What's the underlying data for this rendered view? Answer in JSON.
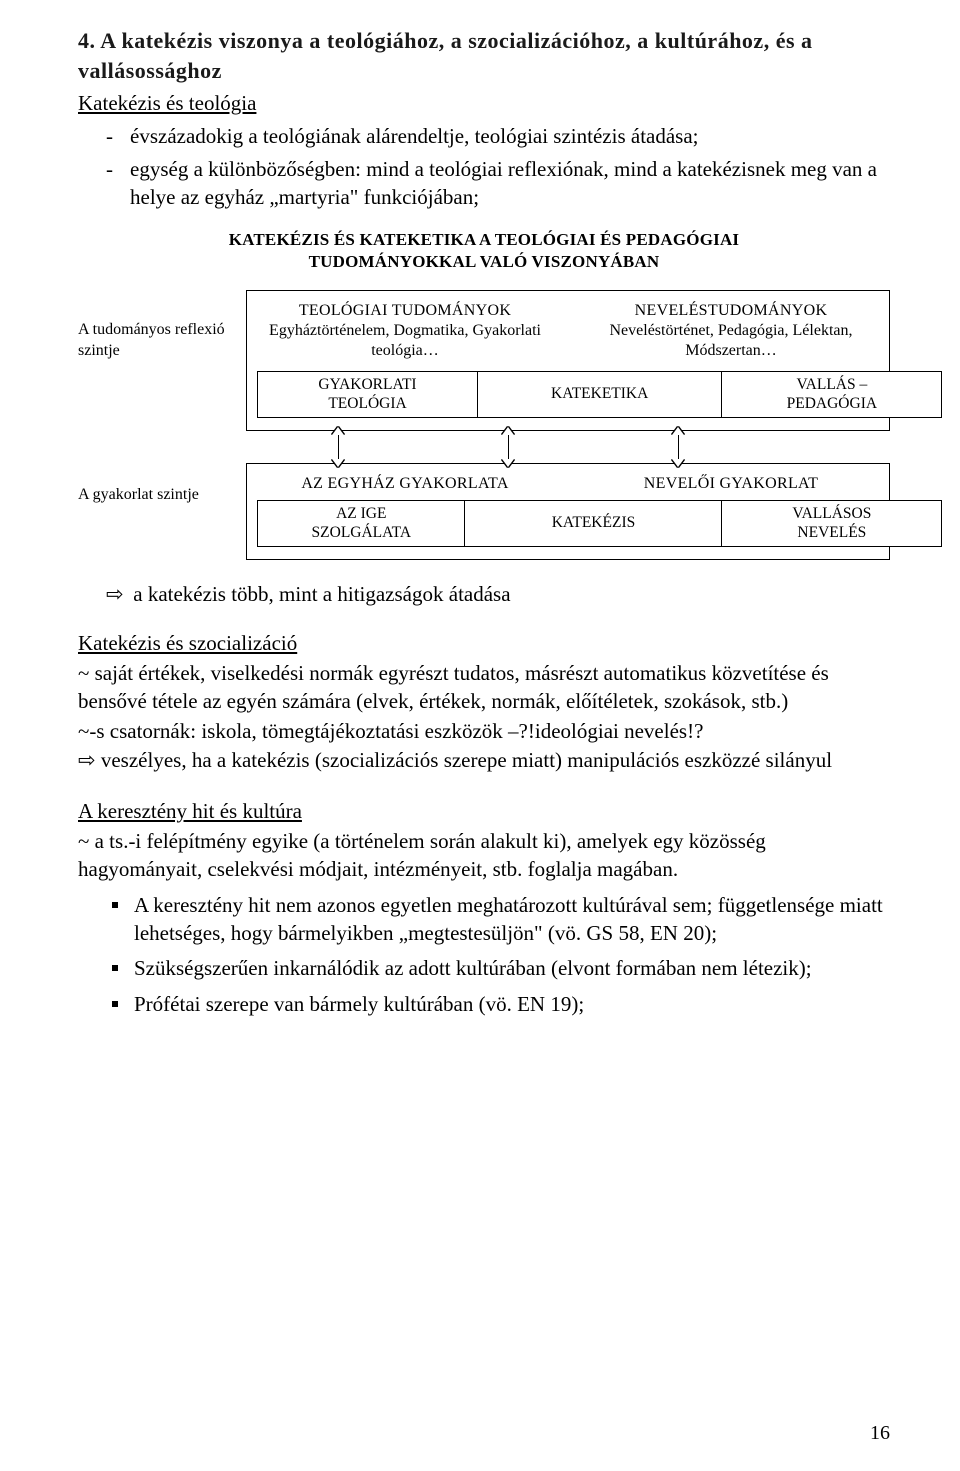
{
  "heading": "4.  A katekézis viszonya a teológiához, a szocializációhoz, a kultúrához, és a vallásossághoz",
  "sec1_title": "Katekézis és teológia",
  "sec1_items": [
    "évszázadokig a teológiának alárendeltje, teológiai szintézis átadása;",
    "egység a különbözőségben: mind a teológiai reflexiónak, mind a katekézisnek meg van a helye az egyház „martyria\" funkciójában;"
  ],
  "diagram": {
    "title_l1": "KATEKÉZIS ÉS KATEKETIKA A TEOLÓGIAI ÉS PEDAGÓGIAI",
    "title_l2": "TUDOMÁNYOKKAL VALÓ VISZONYÁBAN",
    "left_top": "A tudományos reflexió szintje",
    "left_bottom": "A gyakorlat szintje",
    "top_box": {
      "col_a_t": "TEOLÓGIAI TUDOMÁNYOK",
      "col_a_s": "Egyháztörténelem, Dogmatika, Gyakorlati teológia…",
      "col_b_t": "NEVELÉSTUDOMÁNYOK",
      "col_b_s": "Neveléstörténet, Pedagógia, Lélektan, Módszertan…",
      "sub_a_l1": "GYAKORLATI",
      "sub_a_l2": "TEOLÓGIA",
      "sub_b": "KATEKETIKA",
      "sub_c_l1": "VALLÁS –",
      "sub_c_l2": "PEDAGÓGIA"
    },
    "bottom_box": {
      "col_a_t": "AZ EGYHÁZ GYAKORLATA",
      "col_b_t": "NEVELŐI GYAKORLAT",
      "sub_a_l1": "AZ IGE",
      "sub_a_l2": "SZOLGÁLATA",
      "sub_b": "KATEKÉZIS",
      "sub_c_l1": "VALLÁSOS",
      "sub_c_l2": "NEVELÉS"
    },
    "connector_x": [
      90,
      260,
      430
    ]
  },
  "after_diagram": "a katekézis több, mint a hitigazságok átadása",
  "sec2_title": "Katekézis és szocializáció",
  "sec2_p1": "~ saját értékek, viselkedési normák egyrészt tudatos, másrészt automatikus közvetítése és bensővé tétele az egyén számára (elvek, értékek, normák, előítéletek, szokások, stb.)",
  "sec2_p2": "~-s csatornák: iskola, tömegtájékoztatási eszközök –?!ideológiai nevelés!?",
  "sec2_p3_glyph": "⇨",
  "sec2_p3": "veszélyes, ha a katekézis (szocializációs szerepe miatt) manipulációs eszközzé silányul",
  "sec3_title": "A keresztény hit és kultúra",
  "sec3_p1": "~ a ts.-i felépítmény egyike (a történelem során alakult ki), amelyek egy közösség hagyományait, cselekvési módjait, intézményeit, stb. foglalja magában.",
  "sec3_items": [
    "A keresztény hit nem azonos egyetlen meghatározott kultúrával sem; függetlensége miatt lehetséges, hogy bármelyikben „megtestesüljön\" (vö. GS 58, EN 20);",
    "Szükségszerűen inkarnálódik az adott kultúrában (elvont formában nem létezik);",
    "Prófétai szerepe van bármely kultúrában (vö. EN 19);"
  ],
  "page_number": "16",
  "glyph_arrow": "⇨"
}
